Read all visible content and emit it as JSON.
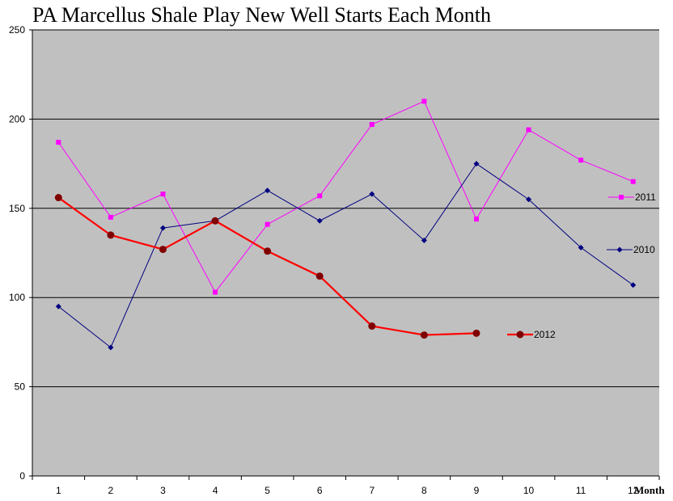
{
  "chart_data": {
    "type": "line",
    "title": "PA Marcellus Shale Play New Well Starts Each Month",
    "xlabel": "Month",
    "ylabel": "",
    "categories": [
      "1",
      "2",
      "3",
      "4",
      "5",
      "6",
      "7",
      "8",
      "9",
      "10",
      "11",
      "12"
    ],
    "ylim": [
      0,
      250
    ],
    "yticks": [
      0,
      50,
      100,
      150,
      200,
      250
    ],
    "grid": "horizontal",
    "legend": "inline-right",
    "series": [
      {
        "name": "2011",
        "color": "#ff00ff",
        "marker": "square",
        "values": [
          187,
          145,
          158,
          103,
          141,
          157,
          197,
          210,
          144,
          194,
          177,
          165
        ]
      },
      {
        "name": "2010",
        "color": "#000080",
        "marker": "diamond",
        "values": [
          95,
          72,
          139,
          143,
          160,
          143,
          158,
          132,
          175,
          155,
          128,
          107
        ]
      },
      {
        "name": "2012",
        "color": "#ff0000",
        "marker_color": "#800000",
        "marker": "circle",
        "values": [
          156,
          135,
          127,
          143,
          126,
          112,
          84,
          79,
          80,
          null,
          null,
          null
        ]
      }
    ]
  }
}
